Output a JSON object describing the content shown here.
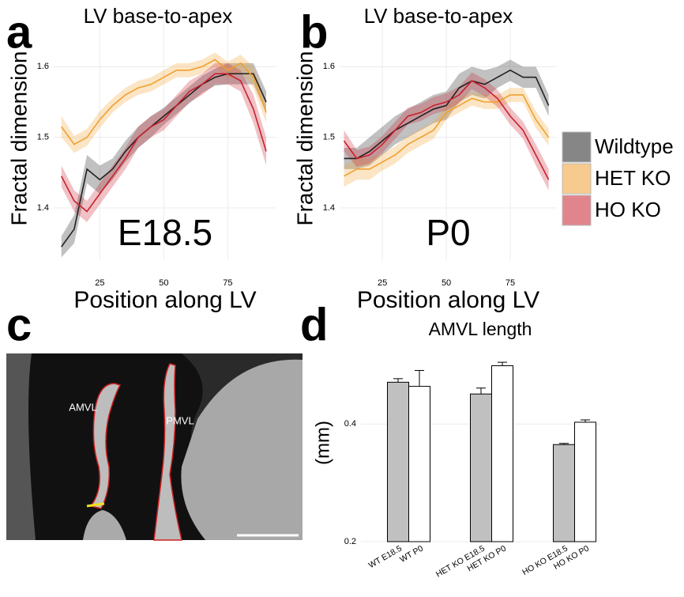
{
  "chart_data": [
    {
      "type": "line",
      "panel_label": "a",
      "title": "LV base-to-apex",
      "annotation": "E18.5",
      "x_label": "Position along LV",
      "y_label": "Fractal dimension",
      "x": [
        10,
        15,
        20,
        25,
        30,
        35,
        40,
        45,
        50,
        55,
        60,
        65,
        70,
        75,
        80,
        85,
        90
      ],
      "xlim": [
        7,
        94
      ],
      "xticks": [
        25,
        50,
        75
      ],
      "ylim": [
        1.325,
        1.672
      ],
      "yticks": [
        1.4,
        1.5,
        1.6
      ],
      "grid": true,
      "legend": "right",
      "series": [
        {
          "name": "Wildtype",
          "color": "#222222",
          "values": [
            1.345,
            1.37,
            1.455,
            1.44,
            1.455,
            1.48,
            1.5,
            1.515,
            1.53,
            1.545,
            1.56,
            1.575,
            1.585,
            1.59,
            1.59,
            1.59,
            1.55
          ],
          "errors": [
            0.015,
            0.02,
            0.02,
            0.02,
            0.015,
            0.015,
            0.015,
            0.015,
            0.012,
            0.012,
            0.012,
            0.012,
            0.012,
            0.015,
            0.015,
            0.015,
            0.015
          ]
        },
        {
          "name": "HET KO",
          "color": "#f0a030",
          "values": [
            1.515,
            1.49,
            1.5,
            1.525,
            1.545,
            1.56,
            1.57,
            1.575,
            1.585,
            1.595,
            1.595,
            1.6,
            1.61,
            1.595,
            1.605,
            1.585,
            1.535
          ],
          "errors": [
            0.015,
            0.012,
            0.012,
            0.012,
            0.01,
            0.01,
            0.01,
            0.01,
            0.01,
            0.01,
            0.01,
            0.01,
            0.01,
            0.012,
            0.012,
            0.015,
            0.015
          ]
        },
        {
          "name": "HO KO",
          "color": "#c8202e",
          "values": [
            1.445,
            1.41,
            1.395,
            1.42,
            1.445,
            1.47,
            1.5,
            1.515,
            1.525,
            1.545,
            1.565,
            1.575,
            1.59,
            1.59,
            1.58,
            1.54,
            1.48
          ],
          "errors": [
            0.015,
            0.015,
            0.015,
            0.015,
            0.015,
            0.015,
            0.015,
            0.015,
            0.015,
            0.015,
            0.015,
            0.015,
            0.015,
            0.015,
            0.015,
            0.02,
            0.02
          ]
        }
      ]
    },
    {
      "type": "line",
      "panel_label": "b",
      "title": "LV base-to-apex",
      "annotation": "P0",
      "x_label": "Position along LV",
      "y_label": "Fractal dimension",
      "x": [
        10,
        15,
        20,
        25,
        30,
        35,
        40,
        45,
        50,
        55,
        60,
        65,
        70,
        75,
        80,
        85,
        90
      ],
      "xlim": [
        8.3,
        93.2
      ],
      "xticks": [
        25,
        50,
        75
      ],
      "ylim": [
        1.325,
        1.672
      ],
      "yticks": [
        1.4,
        1.5,
        1.6
      ],
      "grid": true,
      "series": [
        {
          "color": "#222222",
          "values": [
            1.47,
            1.47,
            1.48,
            1.495,
            1.51,
            1.52,
            1.53,
            1.54,
            1.545,
            1.57,
            1.58,
            1.575,
            1.585,
            1.595,
            1.585,
            1.585,
            1.545
          ],
          "errors": [
            0.015,
            0.015,
            0.02,
            0.02,
            0.02,
            0.02,
            0.02,
            0.02,
            0.02,
            0.02,
            0.02,
            0.02,
            0.015,
            0.015,
            0.015,
            0.015,
            0.015
          ]
        },
        {
          "color": "#f0a030",
          "values": [
            1.445,
            1.455,
            1.455,
            1.465,
            1.475,
            1.49,
            1.5,
            1.51,
            1.535,
            1.545,
            1.555,
            1.55,
            1.55,
            1.56,
            1.56,
            1.525,
            1.5
          ],
          "errors": [
            0.015,
            0.015,
            0.015,
            0.012,
            0.012,
            0.012,
            0.012,
            0.012,
            0.01,
            0.01,
            0.01,
            0.01,
            0.01,
            0.01,
            0.01,
            0.012,
            0.012
          ]
        },
        {
          "color": "#c8202e",
          "values": [
            1.495,
            1.47,
            1.475,
            1.49,
            1.51,
            1.53,
            1.535,
            1.545,
            1.55,
            1.56,
            1.58,
            1.57,
            1.555,
            1.53,
            1.51,
            1.475,
            1.44
          ],
          "errors": [
            0.015,
            0.012,
            0.012,
            0.012,
            0.012,
            0.012,
            0.012,
            0.012,
            0.012,
            0.012,
            0.012,
            0.012,
            0.012,
            0.012,
            0.012,
            0.015,
            0.015
          ]
        }
      ]
    },
    {
      "type": "bar",
      "panel_label": "d",
      "title": "AMVL length",
      "y_label": "(mm)",
      "categories": [
        "WT E18.5",
        "WT P0",
        "HET KO E18.5",
        "HET KO P0",
        "HO KO E18.5",
        "HO KO P0"
      ],
      "values": [
        0.471,
        0.464,
        0.451,
        0.499,
        0.365,
        0.403
      ],
      "errors": [
        0.006,
        0.027,
        0.01,
        0.006,
        0.002,
        0.004
      ],
      "colors": [
        "#c0c0c0",
        "#ffffff",
        "#c0c0c0",
        "#ffffff",
        "#c0c0c0",
        "#ffffff"
      ],
      "ylim": [
        0.2,
        0.536
      ],
      "yticks": [
        0.2,
        0.4
      ],
      "grid": true
    }
  ],
  "image": {
    "panel_label": "c",
    "labels": [
      "AMVL",
      "PMVL"
    ]
  }
}
